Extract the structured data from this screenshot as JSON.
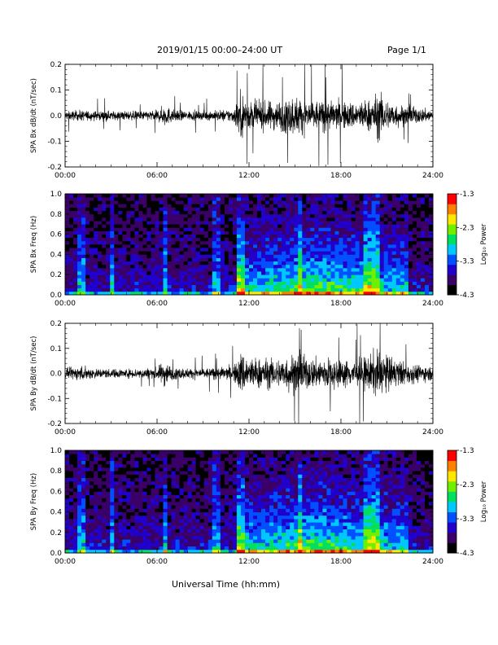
{
  "header": {
    "date_range": "2019/01/15   00:00–24:00 UT",
    "page": "Page 1/1"
  },
  "x_axis": {
    "label": "Universal Time (hh:mm)",
    "ticks": [
      "00:00",
      "06:00",
      "12:00",
      "18:00",
      "24:00"
    ],
    "range_hours": [
      0,
      24
    ]
  },
  "colorbar": {
    "label": "Log₁₀ Power",
    "ticks": [
      "-1.3",
      "-2.3",
      "-3.3",
      "-4.3"
    ],
    "range": [
      -4.3,
      -1.3
    ],
    "colormap": [
      "#000000",
      "#3a0068",
      "#2200cc",
      "#0050ff",
      "#00c8ff",
      "#00e060",
      "#70f000",
      "#ffe800",
      "#ff8000",
      "#ff0000"
    ]
  },
  "chart_data": [
    {
      "type": "line",
      "panel": "bx-timeseries",
      "ylabel": "SPA Bx dB/dt (nT/sec)",
      "ylim": [
        -0.2,
        0.2
      ],
      "yticks": [
        "0.2",
        "0.1",
        "0.0",
        "-0.1",
        "-0.2"
      ],
      "xlim": [
        0,
        24
      ],
      "envelope_hours": [
        0,
        1,
        2,
        3,
        4,
        5,
        6,
        6.5,
        7,
        8,
        9,
        10,
        11,
        11.5,
        12,
        13,
        14,
        15,
        16,
        17,
        18,
        19,
        20,
        20.5,
        21,
        22,
        23,
        24
      ],
      "envelope_amplitude": [
        0.03,
        0.035,
        0.03,
        0.03,
        0.03,
        0.03,
        0.035,
        0.07,
        0.04,
        0.03,
        0.03,
        0.035,
        0.045,
        0.16,
        0.09,
        0.09,
        0.1,
        0.13,
        0.1,
        0.1,
        0.09,
        0.09,
        0.11,
        0.16,
        0.1,
        0.07,
        0.05,
        0.04
      ]
    },
    {
      "type": "heatmap",
      "panel": "bx-spectrogram",
      "ylabel": "SPA Bx Freq (Hz)",
      "ylim": [
        0.0,
        1.0
      ],
      "yticks": [
        "1.0",
        "0.8",
        "0.6",
        "0.4",
        "0.2",
        "0.0"
      ],
      "xlim": [
        0,
        24
      ],
      "zlim": [
        -4.3,
        -1.3
      ]
    },
    {
      "type": "line",
      "panel": "by-timeseries",
      "ylabel": "SPA By dB/dt (nT/sec)",
      "ylim": [
        -0.2,
        0.2
      ],
      "yticks": [
        "0.2",
        "0.1",
        "0.0",
        "-0.1",
        "-0.2"
      ],
      "xlim": [
        0,
        24
      ],
      "envelope_hours": [
        0,
        1,
        2,
        3,
        4,
        5,
        6,
        6.5,
        7,
        8,
        9,
        10,
        11,
        11.5,
        12,
        13,
        14,
        15,
        16,
        17,
        18,
        19,
        20,
        20.5,
        21,
        22,
        23,
        24
      ],
      "envelope_amplitude": [
        0.03,
        0.05,
        0.035,
        0.03,
        0.03,
        0.035,
        0.04,
        0.09,
        0.04,
        0.035,
        0.035,
        0.04,
        0.05,
        0.15,
        0.11,
        0.1,
        0.1,
        0.14,
        0.1,
        0.11,
        0.09,
        0.09,
        0.13,
        0.17,
        0.12,
        0.08,
        0.06,
        0.045
      ]
    },
    {
      "type": "heatmap",
      "panel": "by-spectrogram",
      "ylabel": "SPA By Freq (Hz)",
      "ylim": [
        0.0,
        1.0
      ],
      "yticks": [
        "1.0",
        "0.8",
        "0.6",
        "0.4",
        "0.2",
        "0.0"
      ],
      "xlim": [
        0,
        24
      ],
      "zlim": [
        -4.3,
        -1.3
      ]
    }
  ]
}
